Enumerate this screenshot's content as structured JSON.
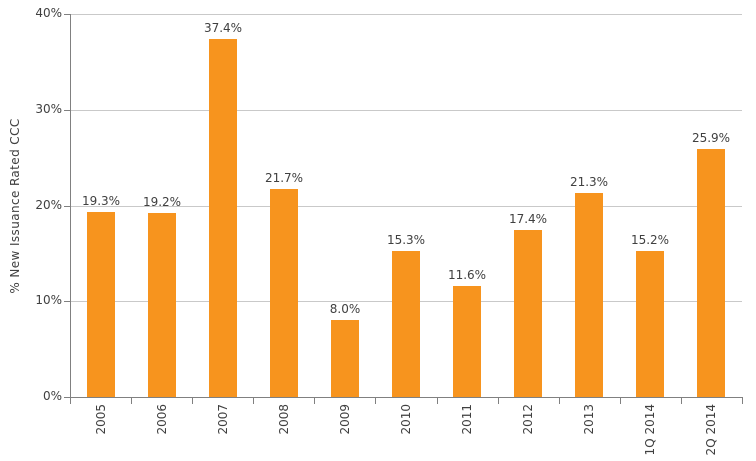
{
  "chart_data": {
    "type": "bar",
    "title": "",
    "xlabel": "",
    "ylabel": "% New Issuance Rated CCC",
    "categories": [
      "2005",
      "2006",
      "2007",
      "2008",
      "2009",
      "2010",
      "2011",
      "2012",
      "2013",
      "1Q 2014",
      "2Q 2014"
    ],
    "values": [
      19.3,
      19.2,
      37.4,
      21.7,
      8.0,
      15.3,
      11.6,
      17.4,
      21.3,
      15.2,
      25.9
    ],
    "data_labels": [
      "19.3%",
      "19.2%",
      "37.4%",
      "21.7%",
      "8.0%",
      "15.3%",
      "11.6%",
      "17.4%",
      "21.3%",
      "15.2%",
      "25.9%"
    ],
    "y_ticks": [
      "0%",
      "10%",
      "20%",
      "30%",
      "40%"
    ],
    "y_tick_values": [
      0,
      10,
      20,
      30,
      40
    ],
    "ylim": [
      0,
      40
    ],
    "grid": true,
    "legend": false,
    "colors": {
      "bar": "#F7941E",
      "gridline": "#C9C9C9",
      "axis": "#808080",
      "text": "#404040"
    }
  }
}
